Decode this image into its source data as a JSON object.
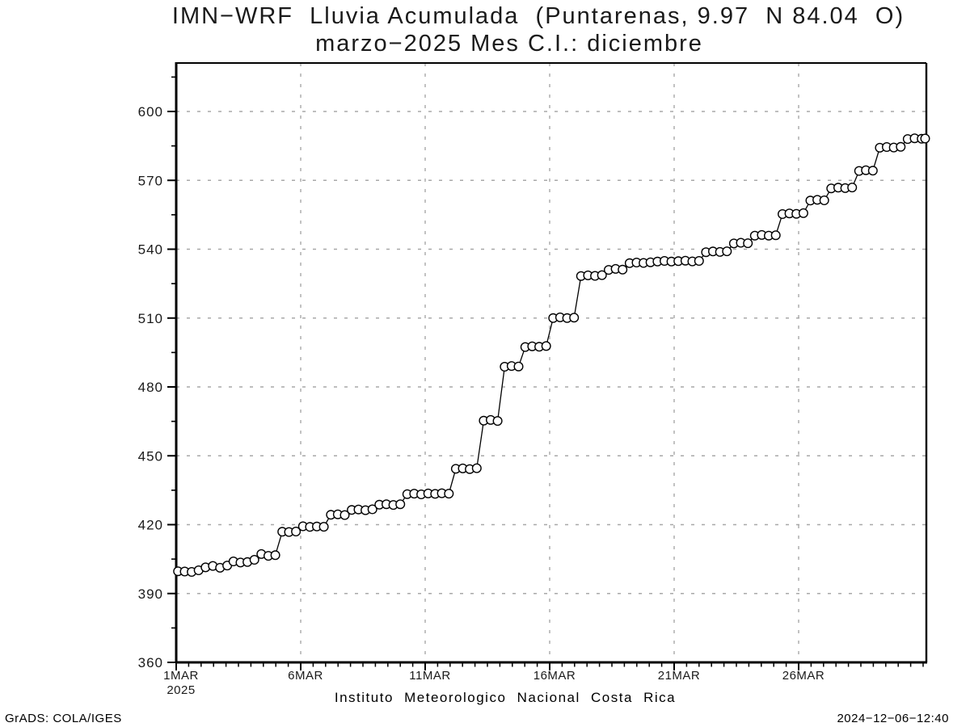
{
  "chart_data": {
    "type": "line",
    "title": "IMN−WRF  Lluvia Acumulada  (Puntarenas, 9.97  N 84.04  O)",
    "subtitle": "marzo−2025 Mes C.I.: diciembre",
    "footer_label": "Instituto Meteorologico Nacional Costa Rica",
    "ylabel": "",
    "xlabel": "",
    "ylim": [
      360,
      621
    ],
    "xlim_days": [
      0,
      30.13
    ],
    "y_ticks": [
      360,
      390,
      420,
      450,
      480,
      510,
      540,
      570,
      600
    ],
    "y_minor_ticks": [
      375,
      405,
      435,
      465,
      495,
      525,
      555,
      585,
      615
    ],
    "x_ticks": [
      {
        "day": 0,
        "label": "1MAR",
        "sublabel": "2025"
      },
      {
        "day": 5,
        "label": "6MAR"
      },
      {
        "day": 10,
        "label": "11MAR"
      },
      {
        "day": 15,
        "label": "16MAR"
      },
      {
        "day": 20,
        "label": "21MAR"
      },
      {
        "day": 25,
        "label": "26MAR"
      }
    ],
    "x_minor_interval_days": 0.5,
    "grid": "dashed",
    "legend_position": "none",
    "colors": {
      "background": "#ffffff",
      "axis": "#000000",
      "grid": "#a8a8a8",
      "line": "#000000",
      "marker_fill": "#ffffff",
      "marker_stroke": "#000000"
    },
    "series": [
      {
        "name": "lluvia-acumulada-mm",
        "marker": "open-circle",
        "units": "mm",
        "x_units": "days since 1MAR2025",
        "points": [
          [
            0.07,
            399.7
          ],
          [
            0.34,
            399.6
          ],
          [
            0.62,
            399.4
          ],
          [
            0.9,
            400.1
          ],
          [
            1.18,
            401.4
          ],
          [
            1.47,
            402.0
          ],
          [
            1.76,
            401.2
          ],
          [
            2.05,
            402.2
          ],
          [
            2.3,
            404.0
          ],
          [
            2.58,
            403.5
          ],
          [
            2.86,
            403.7
          ],
          [
            3.14,
            404.7
          ],
          [
            3.42,
            407.2
          ],
          [
            3.7,
            406.4
          ],
          [
            3.98,
            406.7
          ],
          [
            4.26,
            416.9
          ],
          [
            4.53,
            416.8
          ],
          [
            4.81,
            417.0
          ],
          [
            5.09,
            419.3
          ],
          [
            5.37,
            419.0
          ],
          [
            5.65,
            419.2
          ],
          [
            5.93,
            419.1
          ],
          [
            6.21,
            424.3
          ],
          [
            6.49,
            424.5
          ],
          [
            6.77,
            424.2
          ],
          [
            7.05,
            426.4
          ],
          [
            7.32,
            426.6
          ],
          [
            7.6,
            426.3
          ],
          [
            7.88,
            426.7
          ],
          [
            8.16,
            428.7
          ],
          [
            8.44,
            428.9
          ],
          [
            8.72,
            428.6
          ],
          [
            9.0,
            428.9
          ],
          [
            9.28,
            433.3
          ],
          [
            9.56,
            433.5
          ],
          [
            9.84,
            433.2
          ],
          [
            10.12,
            433.6
          ],
          [
            10.4,
            433.4
          ],
          [
            10.67,
            433.7
          ],
          [
            10.95,
            433.5
          ],
          [
            11.23,
            444.3
          ],
          [
            11.51,
            444.5
          ],
          [
            11.79,
            444.2
          ],
          [
            12.07,
            444.6
          ],
          [
            12.35,
            465.3
          ],
          [
            12.63,
            465.6
          ],
          [
            12.91,
            465.2
          ],
          [
            13.19,
            488.8
          ],
          [
            13.47,
            489.1
          ],
          [
            13.75,
            488.9
          ],
          [
            14.02,
            497.4
          ],
          [
            14.3,
            497.7
          ],
          [
            14.58,
            497.5
          ],
          [
            14.86,
            497.8
          ],
          [
            15.14,
            510.0
          ],
          [
            15.42,
            510.3
          ],
          [
            15.7,
            510.0
          ],
          [
            15.98,
            510.2
          ],
          [
            16.26,
            528.3
          ],
          [
            16.54,
            528.6
          ],
          [
            16.82,
            528.4
          ],
          [
            17.1,
            528.7
          ],
          [
            17.37,
            531.0
          ],
          [
            17.65,
            531.4
          ],
          [
            17.93,
            531.1
          ],
          [
            18.21,
            533.9
          ],
          [
            18.49,
            534.2
          ],
          [
            18.77,
            534.0
          ],
          [
            19.05,
            534.3
          ],
          [
            19.33,
            534.6
          ],
          [
            19.61,
            534.9
          ],
          [
            19.89,
            534.6
          ],
          [
            20.17,
            534.8
          ],
          [
            20.45,
            535.0
          ],
          [
            20.73,
            534.7
          ],
          [
            21.0,
            534.9
          ],
          [
            21.28,
            538.7
          ],
          [
            21.56,
            539.0
          ],
          [
            21.84,
            538.8
          ],
          [
            22.12,
            539.1
          ],
          [
            22.4,
            542.5
          ],
          [
            22.68,
            542.8
          ],
          [
            22.96,
            542.6
          ],
          [
            23.24,
            545.9
          ],
          [
            23.52,
            546.2
          ],
          [
            23.8,
            545.9
          ],
          [
            24.08,
            546.1
          ],
          [
            24.35,
            555.3
          ],
          [
            24.63,
            555.6
          ],
          [
            24.91,
            555.4
          ],
          [
            25.19,
            555.7
          ],
          [
            25.47,
            561.2
          ],
          [
            25.75,
            561.5
          ],
          [
            26.03,
            561.3
          ],
          [
            26.31,
            566.5
          ],
          [
            26.59,
            566.8
          ],
          [
            26.87,
            566.6
          ],
          [
            27.15,
            566.9
          ],
          [
            27.43,
            574.1
          ],
          [
            27.7,
            574.4
          ],
          [
            27.98,
            574.2
          ],
          [
            28.26,
            584.2
          ],
          [
            28.54,
            584.5
          ],
          [
            28.82,
            584.3
          ],
          [
            29.1,
            584.6
          ],
          [
            29.38,
            588.0
          ],
          [
            29.66,
            588.3
          ],
          [
            29.94,
            588.1
          ],
          [
            30.08,
            588.2
          ]
        ]
      }
    ]
  },
  "footer": {
    "credit": "GrADS: COLA/IGES",
    "timestamp": "2024−12−06−12:40"
  }
}
